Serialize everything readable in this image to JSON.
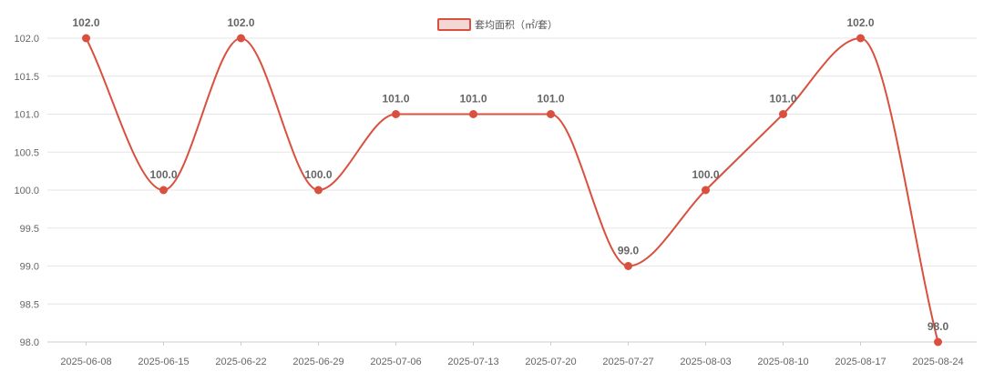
{
  "chart_data": {
    "type": "line",
    "categories": [
      "2025-06-08",
      "2025-06-15",
      "2025-06-22",
      "2025-06-29",
      "2025-07-06",
      "2025-07-13",
      "2025-07-20",
      "2025-07-27",
      "2025-08-03",
      "2025-08-10",
      "2025-08-17",
      "2025-08-24"
    ],
    "series": [
      {
        "name": "套均面积（㎡/套）",
        "values": [
          102.0,
          100.0,
          102.0,
          100.0,
          101.0,
          101.0,
          101.0,
          99.0,
          100.0,
          101.0,
          102.0,
          98.0
        ],
        "data_labels": [
          "102.0",
          "100.0",
          "102.0",
          "100.0",
          "101.0",
          "101.0",
          "101.0",
          "99.0",
          "100.0",
          "101.0",
          "102.0",
          "98.0"
        ],
        "color": "#d9503f",
        "legend_fill": "#f2d7d5"
      }
    ],
    "ylim": [
      98.0,
      102.0
    ],
    "yticks": [
      "98.0",
      "98.5",
      "99.0",
      "99.5",
      "100.0",
      "100.5",
      "101.0",
      "101.5",
      "102.0"
    ],
    "ytick_values": [
      98.0,
      98.5,
      99.0,
      99.5,
      100.0,
      100.5,
      101.0,
      101.5,
      102.0
    ],
    "grid": true,
    "legend_position": "top-center",
    "smooth": true
  }
}
